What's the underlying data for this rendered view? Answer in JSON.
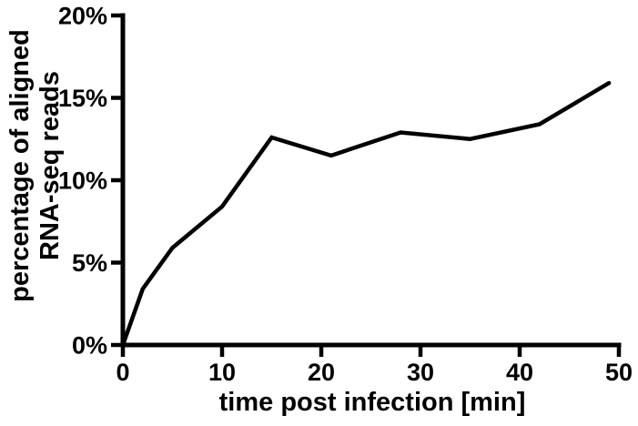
{
  "figure": {
    "background": "#ffffff",
    "axis_color": "#000000",
    "line_color": "#000000"
  },
  "chart_data": {
    "type": "line",
    "title": "",
    "xlabel": "time post infection [min]",
    "ylabel": "percentage of aligned RNA-seq reads",
    "ylabel_lines": [
      "percentage of aligned",
      "RNA-seq reads"
    ],
    "series": [
      {
        "name": "percentage of aligned RNA-seq reads",
        "x": [
          0,
          2,
          5,
          10,
          15,
          21,
          28,
          35,
          42,
          49
        ],
        "y": [
          0,
          3.4,
          5.9,
          8.4,
          12.6,
          11.5,
          12.9,
          12.5,
          13.4,
          15.9
        ]
      }
    ],
    "xlim": [
      0,
      50
    ],
    "ylim": [
      0,
      20
    ],
    "x_ticks": [
      {
        "value": 0,
        "label": "0"
      },
      {
        "value": 10,
        "label": "10"
      },
      {
        "value": 20,
        "label": "20"
      },
      {
        "value": 30,
        "label": "30"
      },
      {
        "value": 40,
        "label": "40"
      },
      {
        "value": 50,
        "label": "50"
      }
    ],
    "y_ticks": [
      {
        "value": 0,
        "label": "0%"
      },
      {
        "value": 5,
        "label": "5%"
      },
      {
        "value": 10,
        "label": "10%"
      },
      {
        "value": 15,
        "label": "15%"
      },
      {
        "value": 20,
        "label": "20%"
      }
    ],
    "grid": false,
    "legend": "none"
  }
}
